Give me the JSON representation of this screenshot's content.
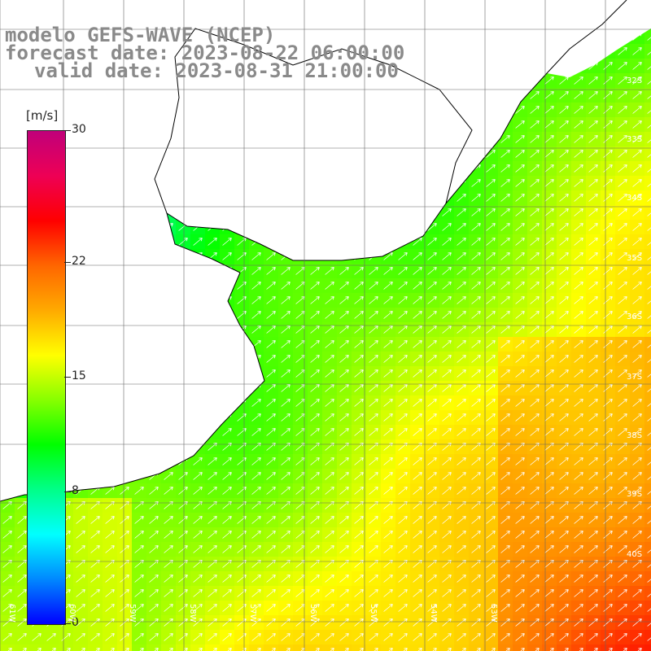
{
  "title": {
    "line1": "modelo GEFS-WAVE (NCEP)",
    "line2": "forecast date: 2023-08-22 06:00:00",
    "line3": "valid date: 2023-08-31 21:00:00"
  },
  "colorbar": {
    "units": "[m/s]",
    "min": 0,
    "max": 30,
    "ticks": [
      {
        "value": 30,
        "label": "30"
      },
      {
        "value": 22,
        "label": "22"
      },
      {
        "value": 15,
        "label": "15"
      },
      {
        "value": 8,
        "label": "8"
      },
      {
        "value": 0,
        "label": "0"
      }
    ],
    "colors": [
      "#0000ff",
      "#0088ff",
      "#00ffff",
      "#00ff88",
      "#00ff00",
      "#88ff00",
      "#ffff00",
      "#ffaa00",
      "#ff6600",
      "#ff0000",
      "#ee0055",
      "#c0007a"
    ]
  },
  "map": {
    "lat_labels": [
      "32S",
      "33S",
      "34S",
      "35S",
      "36S",
      "37S",
      "38S",
      "39S",
      "40S"
    ],
    "lon_labels": [
      "61W",
      "60W",
      "59W",
      "58W",
      "57W",
      "56W",
      "55W",
      "54W",
      "53W"
    ],
    "lon_range": [
      -61,
      -52
    ],
    "lat_range": [
      -41,
      -30
    ],
    "land_color": "#ffffff",
    "coastline_color": "#000000",
    "grid_color": "#666666",
    "arrow_color": "#ffffff",
    "field_variable": "wind speed",
    "field_unit": "m/s"
  }
}
